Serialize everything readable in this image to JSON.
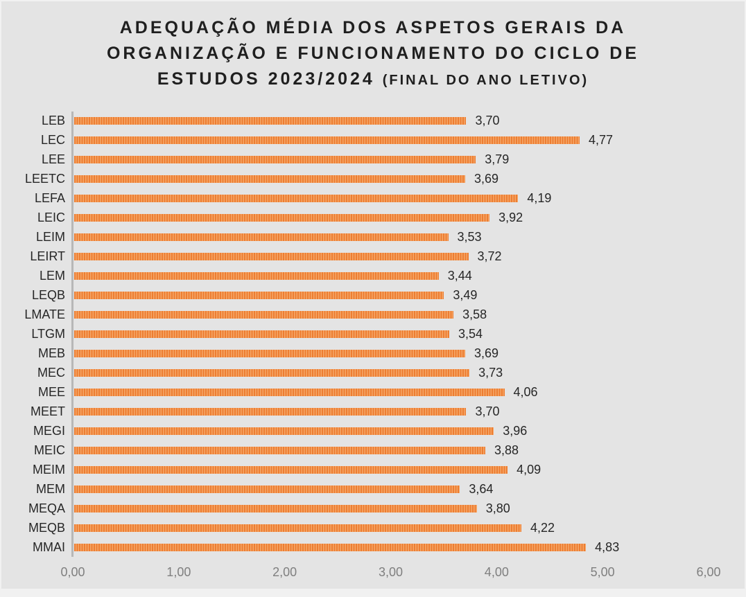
{
  "title": {
    "line1": "ADEQUAÇÃO MÉDIA DOS ASPETOS GERAIS DA",
    "line2": "ORGANIZAÇÃO E FUNCIONAMENTO DO CICLO DE",
    "line3_main": "ESTUDOS 2023/2024 ",
    "line3_suffix": "(FINAL DO ANO LETIVO)"
  },
  "colors": {
    "background": "#E4E4E4",
    "bar_dark": "#ED7D31",
    "bar_light": "#F5A869",
    "axis_line": "#B7B7B7",
    "title_text": "#1F1F1F",
    "label_text": "#262626",
    "tick_text": "#7F7F7F"
  },
  "chart_data": {
    "type": "bar",
    "orientation": "horizontal",
    "title": "ADEQUAÇÃO MÉDIA DOS ASPETOS GERAIS DA ORGANIZAÇÃO E FUNCIONAMENTO DO CICLO DE ESTUDOS 2023/2024 (FINAL DO ANO LETIVO)",
    "xlabel": "",
    "ylabel": "",
    "xlim": [
      0,
      6
    ],
    "grid": false,
    "legend": false,
    "x_tick_labels": [
      "0,00",
      "1,00",
      "2,00",
      "3,00",
      "4,00",
      "5,00",
      "6,00"
    ],
    "x_tick_values": [
      0,
      1,
      2,
      3,
      4,
      5,
      6
    ],
    "categories": [
      "LEB",
      "LEC",
      "LEE",
      "LEETC",
      "LEFA",
      "LEIC",
      "LEIM",
      "LEIRT",
      "LEM",
      "LEQB",
      "LMATE",
      "LTGM",
      "MEB",
      "MEC",
      "MEE",
      "MEET",
      "MEGI",
      "MEIC",
      "MEIM",
      "MEM",
      "MEQA",
      "MEQB",
      "MMAI"
    ],
    "values": [
      3.7,
      4.77,
      3.79,
      3.69,
      4.19,
      3.92,
      3.53,
      3.72,
      3.44,
      3.49,
      3.58,
      3.54,
      3.69,
      3.73,
      4.06,
      3.7,
      3.96,
      3.88,
      4.09,
      3.64,
      3.8,
      4.22,
      4.83
    ],
    "value_labels": [
      "3,70",
      "4,77",
      "3,79",
      "3,69",
      "4,19",
      "3,92",
      "3,53",
      "3,72",
      "3,44",
      "3,49",
      "3,58",
      "3,54",
      "3,69",
      "3,73",
      "4,06",
      "3,70",
      "3,96",
      "3,88",
      "4,09",
      "3,64",
      "3,80",
      "4,22",
      "4,83"
    ]
  }
}
